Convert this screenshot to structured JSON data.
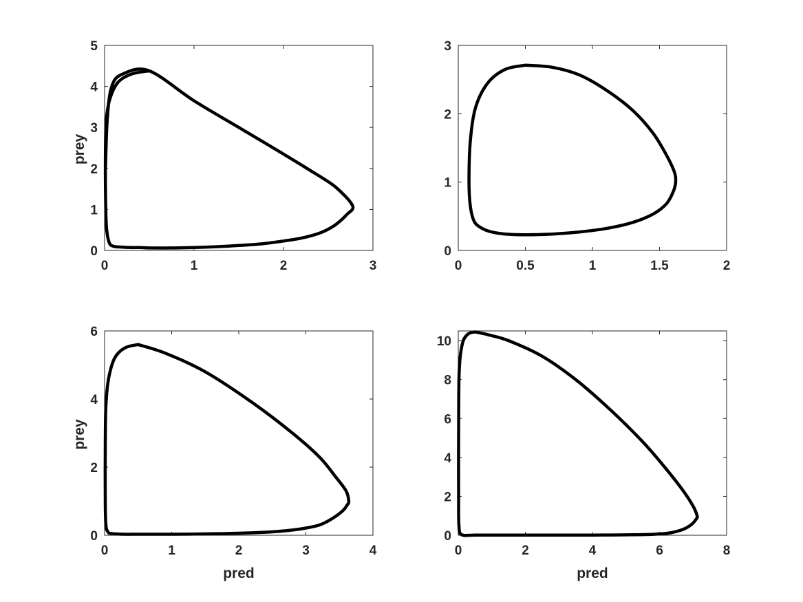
{
  "chart_data": [
    {
      "type": "line",
      "title": "",
      "xlabel": "",
      "ylabel": "prey",
      "xlim": [
        0,
        3
      ],
      "ylim": [
        0,
        5
      ],
      "xticks": [
        0,
        1,
        2,
        3
      ],
      "xtick_labels": [
        "0",
        "1",
        "2",
        "3"
      ],
      "yticks": [
        0,
        1,
        2,
        3,
        4,
        5
      ],
      "ytick_labels": [
        "0",
        "1",
        "2",
        "3",
        "4",
        "5"
      ],
      "grid": false,
      "series": [
        {
          "color": "#000000",
          "x": [
            0.5,
            0.3,
            0.15,
            0.06,
            0.02,
            0.01,
            0.01,
            0.02,
            0.05,
            0.1,
            0.2,
            0.3,
            0.4,
            0.5,
            0.75,
            1.0,
            1.25,
            1.5,
            1.75,
            2.0,
            2.2,
            2.4,
            2.55,
            2.65,
            2.72,
            2.77,
            2.77,
            2.7,
            2.55,
            2.3,
            2.0,
            1.5,
            1.0,
            0.5,
            0.2,
            0.08,
            0.03,
            0.01
          ],
          "y": [
            4.38,
            4.3,
            4.1,
            3.7,
            3.2,
            2.5,
            1.5,
            0.6,
            0.2,
            0.1,
            0.08,
            0.07,
            0.07,
            0.06,
            0.06,
            0.07,
            0.09,
            0.12,
            0.16,
            0.23,
            0.3,
            0.42,
            0.58,
            0.75,
            0.9,
            1.0,
            1.1,
            1.3,
            1.6,
            1.95,
            2.35,
            3.0,
            3.65,
            4.38,
            4.3,
            4.0,
            3.2,
            2.0
          ]
        }
      ]
    },
    {
      "type": "line",
      "title": "",
      "xlabel": "",
      "ylabel": "",
      "xlim": [
        0,
        2
      ],
      "ylim": [
        0,
        3
      ],
      "xticks": [
        0,
        0.5,
        1,
        1.5,
        2
      ],
      "xtick_labels": [
        "0",
        "0.5",
        "1",
        "1.5",
        "2"
      ],
      "yticks": [
        0,
        1,
        2,
        3
      ],
      "ytick_labels": [
        "0",
        "1",
        "2",
        "3"
      ],
      "grid": false,
      "series": [
        {
          "color": "#000000",
          "x": [
            0.5,
            0.35,
            0.22,
            0.13,
            0.09,
            0.08,
            0.09,
            0.12,
            0.18,
            0.25,
            0.35,
            0.5,
            0.7,
            0.9,
            1.1,
            1.3,
            1.45,
            1.55,
            1.6,
            1.62,
            1.61,
            1.55,
            1.45,
            1.3,
            1.1,
            0.9,
            0.7,
            0.5
          ],
          "y": [
            2.71,
            2.65,
            2.45,
            2.1,
            1.6,
            1.0,
            0.65,
            0.42,
            0.32,
            0.27,
            0.24,
            0.23,
            0.24,
            0.27,
            0.32,
            0.41,
            0.53,
            0.68,
            0.85,
            1.0,
            1.15,
            1.4,
            1.72,
            2.05,
            2.35,
            2.57,
            2.68,
            2.71
          ]
        }
      ]
    },
    {
      "type": "line",
      "title": "",
      "xlabel": "pred",
      "ylabel": "prey",
      "xlim": [
        0,
        4
      ],
      "ylim": [
        0,
        6
      ],
      "xticks": [
        0,
        1,
        2,
        3,
        4
      ],
      "xtick_labels": [
        "0",
        "1",
        "2",
        "3",
        "4"
      ],
      "yticks": [
        0,
        2,
        4,
        6
      ],
      "ytick_labels": [
        "0",
        "2",
        "4",
        "6"
      ],
      "grid": false,
      "series": [
        {
          "color": "#000000",
          "x": [
            0.5,
            0.3,
            0.15,
            0.06,
            0.02,
            0.01,
            0.01,
            0.02,
            0.05,
            0.1,
            0.3,
            0.5,
            1.0,
            1.5,
            2.0,
            2.5,
            2.9,
            3.2,
            3.4,
            3.55,
            3.62,
            3.64,
            3.6,
            3.45,
            3.2,
            2.8,
            2.2,
            1.5,
            0.9,
            0.5
          ],
          "y": [
            5.6,
            5.5,
            5.2,
            4.6,
            3.8,
            2.5,
            1.0,
            0.3,
            0.1,
            0.05,
            0.03,
            0.03,
            0.03,
            0.04,
            0.06,
            0.1,
            0.18,
            0.3,
            0.5,
            0.72,
            0.9,
            1.0,
            1.3,
            1.7,
            2.3,
            3.0,
            3.9,
            4.8,
            5.35,
            5.6
          ]
        }
      ]
    },
    {
      "type": "line",
      "title": "",
      "xlabel": "pred",
      "ylabel": "",
      "xlim": [
        0,
        8
      ],
      "ylim": [
        0,
        10.5
      ],
      "xticks": [
        0,
        2,
        4,
        6,
        8
      ],
      "xtick_labels": [
        "0",
        "2",
        "4",
        "6",
        "8"
      ],
      "yticks": [
        0,
        2,
        4,
        6,
        8,
        10
      ],
      "ytick_labels": [
        "0",
        "2",
        "4",
        "6",
        "8",
        "10"
      ],
      "grid": false,
      "series": [
        {
          "color": "#000000",
          "x": [
            0.5,
            0.3,
            0.15,
            0.06,
            0.02,
            0.01,
            0.01,
            0.02,
            0.1,
            0.5,
            1.0,
            2.0,
            3.0,
            4.0,
            5.0,
            5.8,
            6.3,
            6.7,
            6.95,
            7.1,
            7.12,
            7.0,
            6.7,
            6.2,
            5.5,
            4.5,
            3.5,
            2.5,
            1.5,
            0.9,
            0.5
          ],
          "y": [
            10.45,
            10.35,
            10.0,
            9.2,
            8.0,
            5.0,
            2.0,
            0.5,
            0.03,
            0.01,
            0.01,
            0.01,
            0.01,
            0.01,
            0.02,
            0.05,
            0.12,
            0.3,
            0.55,
            0.85,
            1.0,
            1.5,
            2.3,
            3.4,
            4.8,
            6.5,
            8.0,
            9.2,
            10.0,
            10.3,
            10.45
          ]
        }
      ]
    }
  ]
}
